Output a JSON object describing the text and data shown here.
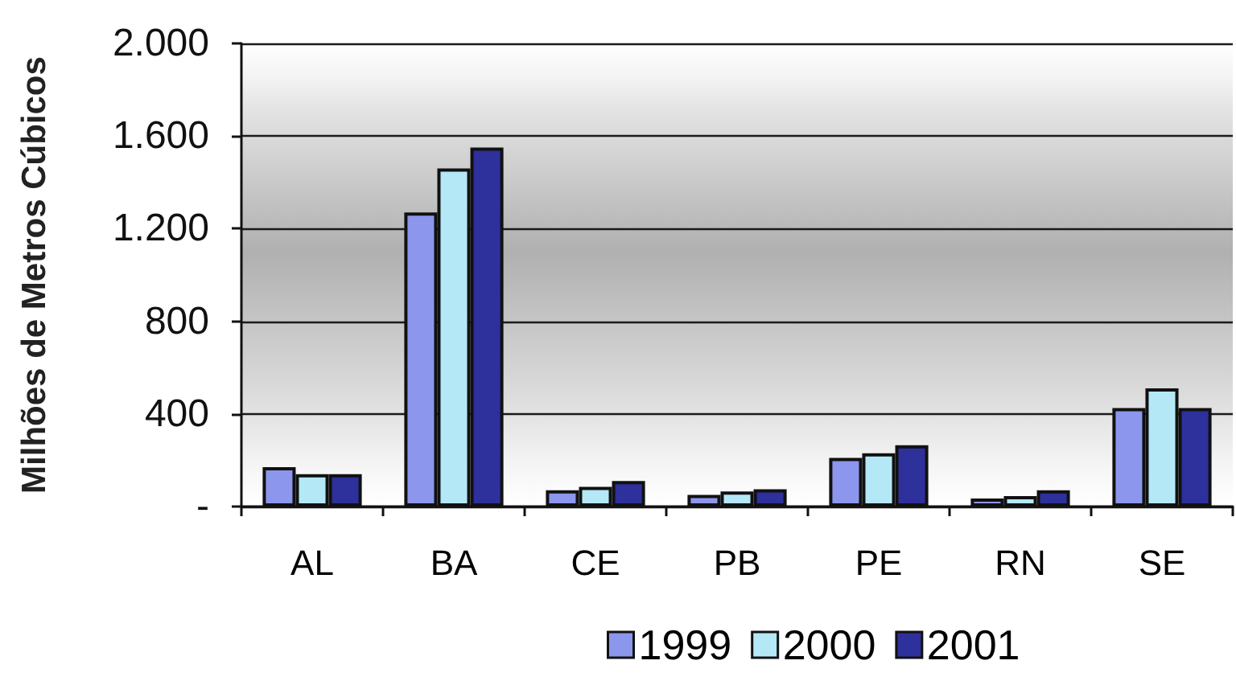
{
  "chart_data": {
    "type": "bar",
    "ylabel": "Milhões de Metros Cúbicos",
    "categories": [
      "AL",
      "BA",
      "CE",
      "PB",
      "PE",
      "RN",
      "SE"
    ],
    "series": [
      {
        "name": "1999",
        "color": "#8c96ec",
        "values": [
          170,
          1270,
          70,
          50,
          210,
          35,
          425
        ]
      },
      {
        "name": "2000",
        "color": "#b4e8f6",
        "values": [
          140,
          1460,
          85,
          65,
          230,
          45,
          510
        ]
      },
      {
        "name": "2001",
        "color": "#2e309c",
        "values": [
          140,
          1550,
          110,
          75,
          265,
          70,
          425
        ]
      }
    ],
    "ylim": [
      0,
      2000
    ],
    "yticks": [
      {
        "value": 0,
        "label": "-"
      },
      400,
      800,
      {
        "value": 1200,
        "label": "1.200"
      },
      {
        "value": 1600,
        "label": "1.600"
      },
      {
        "value": 2000,
        "label": "2.000"
      }
    ],
    "grid": "y",
    "legend": "bottom"
  }
}
